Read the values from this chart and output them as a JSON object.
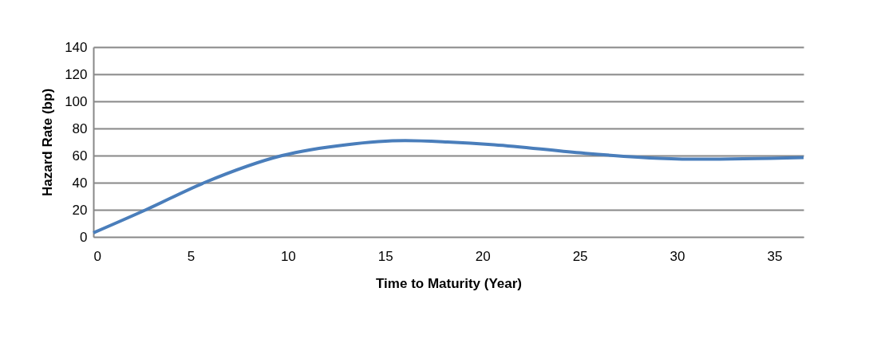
{
  "chart_data": {
    "type": "line",
    "xlabel": "Time to Maturity (Year)",
    "ylabel": "Hazard Rate (bp)",
    "x": [
      0,
      2.7,
      5.7,
      9.7,
      13,
      16,
      18.2,
      20.6,
      25,
      29.1,
      31.2,
      36.5
    ],
    "series": [
      {
        "color": "#4a7ebb",
        "values": [
          3,
          20,
          40,
          60,
          68,
          71,
          70,
          68,
          62,
          58,
          57.3,
          58.5
        ]
      }
    ],
    "xlim": [
      0,
      36.5
    ],
    "xticks": [
      0,
      5,
      10,
      15,
      20,
      25,
      30,
      35
    ],
    "ylim": [
      0,
      140
    ],
    "yticks": [
      0,
      20,
      40,
      60,
      80,
      100,
      120,
      140
    ],
    "grid": "y",
    "legend": false,
    "marker": "none",
    "line_style": "solid"
  }
}
